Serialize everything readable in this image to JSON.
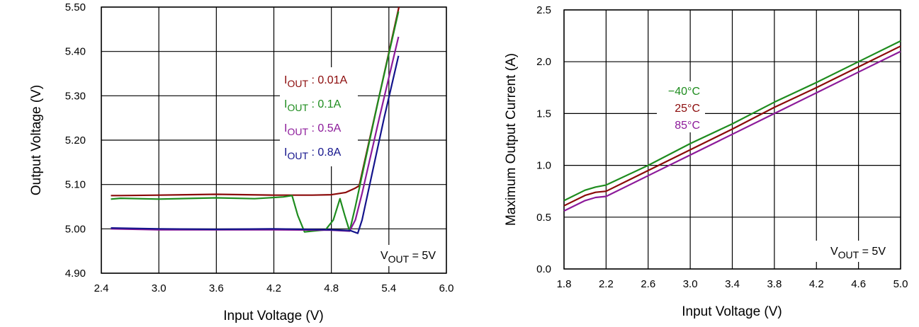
{
  "chart_data": [
    {
      "type": "line",
      "xlabel": "Input Voltage (V)",
      "ylabel": "Output Voltage (V)",
      "xlim": [
        2.4,
        6.0
      ],
      "ylim": [
        4.9,
        5.5
      ],
      "xticks": [
        "2.4",
        "3.0",
        "3.6",
        "4.2",
        "4.8",
        "5.4",
        "6.0"
      ],
      "yticks": [
        "4.90",
        "5.00",
        "5.10",
        "5.20",
        "5.30",
        "5.40",
        "5.50"
      ],
      "grid": true,
      "annotation": {
        "main": "V",
        "sub": "OUT",
        "rest": " = 5V"
      },
      "series": [
        {
          "name": "IOUT : 0.01A",
          "label": {
            "main": "I",
            "sub": "OUT",
            "rest": " : 0.01A"
          },
          "color": "#8b0a0a",
          "x": [
            2.5,
            2.6,
            3.0,
            3.6,
            4.2,
            4.6,
            4.8,
            4.95,
            5.05,
            5.09,
            5.3,
            5.505
          ],
          "y": [
            5.075,
            5.075,
            5.076,
            5.078,
            5.076,
            5.076,
            5.077,
            5.082,
            5.092,
            5.097,
            5.3,
            5.5
          ]
        },
        {
          "name": "IOUT : 0.1A",
          "label": {
            "main": "I",
            "sub": "OUT",
            "rest": " : 0.1A"
          },
          "color": "#1e8c1e",
          "x": [
            2.5,
            2.6,
            3.0,
            3.6,
            4.0,
            4.3,
            4.39,
            4.45,
            4.52,
            4.6,
            4.74,
            4.82,
            4.89,
            4.94,
            4.99,
            5.05,
            5.1,
            5.3,
            5.5
          ],
          "y": [
            5.067,
            5.069,
            5.067,
            5.07,
            5.068,
            5.072,
            5.075,
            5.03,
            4.993,
            4.995,
            4.998,
            5.02,
            5.068,
            5.03,
            4.995,
            5.05,
            5.1,
            5.3,
            5.49
          ]
        },
        {
          "name": "IOUT : 0.5A",
          "label": {
            "main": "I",
            "sub": "OUT",
            "rest": " : 0.5A"
          },
          "color": "#8c1a9a",
          "x": [
            2.5,
            3.0,
            3.6,
            4.2,
            4.8,
            4.99,
            5.05,
            5.12,
            5.3,
            5.5
          ],
          "y": [
            5.0,
            4.998,
            4.998,
            4.998,
            4.997,
            4.995,
            5.02,
            5.08,
            5.25,
            5.433
          ]
        },
        {
          "name": "IOUT : 0.8A",
          "label": {
            "main": "I",
            "sub": "OUT",
            "rest": " : 0.8A"
          },
          "color": "#14148c",
          "x": [
            2.5,
            3.0,
            3.6,
            4.2,
            4.8,
            5.0,
            5.075,
            5.12,
            5.2,
            5.35,
            5.5
          ],
          "y": [
            5.002,
            5.0,
            4.999,
            5.0,
            4.998,
            4.996,
            4.99,
            5.02,
            5.1,
            5.25,
            5.39
          ]
        }
      ]
    },
    {
      "type": "line",
      "xlabel": "Input Voltage (V)",
      "ylabel": "Maximum Output Current (A)",
      "xlim": [
        1.8,
        5.0
      ],
      "ylim": [
        0.0,
        2.5
      ],
      "xticks": [
        "1.8",
        "2.2",
        "2.6",
        "3.0",
        "3.4",
        "3.8",
        "4.2",
        "4.6",
        "5.0"
      ],
      "yticks": [
        "0.0",
        "0.5",
        "1.0",
        "1.5",
        "2.0",
        "2.5"
      ],
      "grid": true,
      "annotation": {
        "main": "V",
        "sub": "OUT",
        "rest": " = 5V"
      },
      "series": [
        {
          "name": "−40°C",
          "color": "#1e8c1e",
          "x": [
            1.8,
            2.0,
            2.1,
            2.2,
            2.6,
            3.0,
            3.4,
            3.8,
            4.2,
            4.6,
            5.0
          ],
          "y": [
            0.66,
            0.76,
            0.79,
            0.81,
            1.0,
            1.21,
            1.4,
            1.61,
            1.8,
            2.0,
            2.2
          ]
        },
        {
          "name": "25°C",
          "color": "#8b0a0a",
          "x": [
            1.8,
            2.0,
            2.1,
            2.2,
            2.6,
            3.0,
            3.4,
            3.8,
            4.2,
            4.6,
            5.0
          ],
          "y": [
            0.61,
            0.71,
            0.74,
            0.75,
            0.95,
            1.15,
            1.35,
            1.56,
            1.75,
            1.95,
            2.15
          ]
        },
        {
          "name": "85°C",
          "color": "#8c1a9a",
          "x": [
            1.8,
            2.0,
            2.1,
            2.2,
            2.6,
            3.0,
            3.4,
            3.8,
            4.2,
            4.6,
            5.0
          ],
          "y": [
            0.56,
            0.66,
            0.69,
            0.7,
            0.9,
            1.1,
            1.3,
            1.5,
            1.7,
            1.9,
            2.1
          ]
        }
      ]
    }
  ]
}
